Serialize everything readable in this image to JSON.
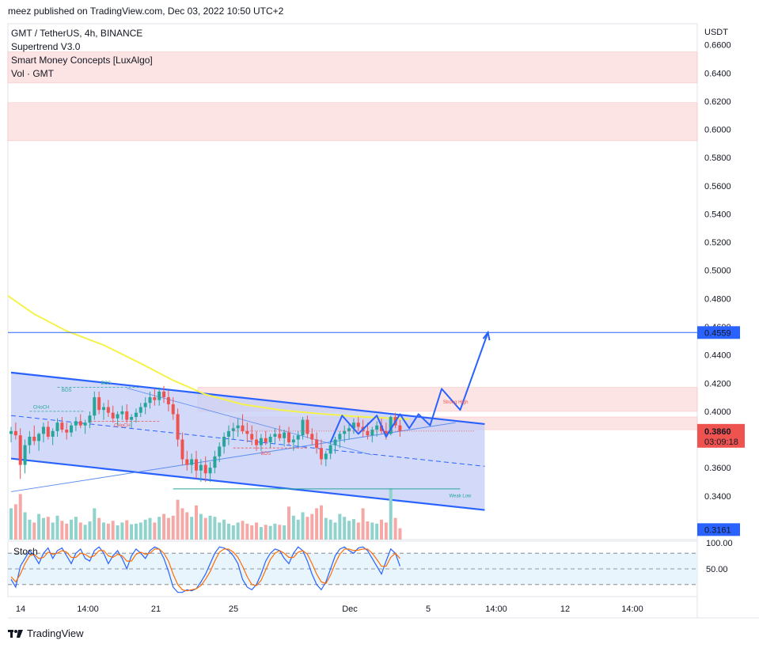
{
  "header": {
    "publish_line": "meez published on TradingView.com, Dec 03, 2022 10:50 UTC+2"
  },
  "legend": {
    "symbol": "GMT / TetherUS, 4h, BINANCE",
    "indicator_1": "Supertrend V3.0",
    "indicator_2": "Smart Money Concepts [LuxAlgo]",
    "indicator_3": "Vol · GMT"
  },
  "footer": {
    "brand": "TradingView"
  },
  "colors": {
    "up": "#26a69a",
    "down": "#ef5350",
    "channel": "#2962ff",
    "channel_fill": "#c3ccf7",
    "supply_zone": "#fde0e0",
    "ema": "#f5f24a",
    "stoch_k": "#2962ff",
    "stoch_d": "#ff6d00",
    "hline": "#2962ff"
  },
  "chart_data": [
    {
      "type": "candlestick",
      "symbol": "GMT / TetherUS",
      "timeframe": "4h",
      "exchange": "BINANCE",
      "y_axis_title": "USDT",
      "ylim": [
        0.309,
        0.675
      ],
      "y_ticks": [
        "0.6600",
        "0.6400",
        "0.6200",
        "0.6000",
        "0.5800",
        "0.5600",
        "0.5400",
        "0.5200",
        "0.5000",
        "0.4800",
        "0.4600",
        "0.4400",
        "0.4200",
        "0.4000",
        "0.3600",
        "0.3400"
      ],
      "x_ticks": [
        "14",
        "14:00",
        "21",
        "25",
        "Dec",
        "5",
        "14:00",
        "12",
        "14:00"
      ],
      "last_price": "0.3860",
      "countdown": "03:09:18",
      "price_labels": [
        "0.4559",
        "0.3161"
      ],
      "horizontal_line": 0.4559,
      "supply_zones": [
        [
          0.633,
          0.655
        ],
        [
          0.592,
          0.619
        ],
        [
          0.4,
          0.417
        ],
        [
          0.387,
          0.396
        ]
      ],
      "annotations": [
        "BOS",
        "BOS",
        "CHoCH",
        "CHoCH",
        "BOS",
        "Strong High",
        "Weak Low"
      ],
      "candles": [
        [
          0.384,
          0.389,
          0.378,
          0.386
        ],
        [
          0.386,
          0.392,
          0.38,
          0.383
        ],
        [
          0.383,
          0.388,
          0.352,
          0.362
        ],
        [
          0.362,
          0.38,
          0.356,
          0.376
        ],
        [
          0.376,
          0.386,
          0.37,
          0.382
        ],
        [
          0.382,
          0.39,
          0.376,
          0.379
        ],
        [
          0.379,
          0.385,
          0.372,
          0.384
        ],
        [
          0.384,
          0.392,
          0.378,
          0.389
        ],
        [
          0.389,
          0.393,
          0.38,
          0.382
        ],
        [
          0.382,
          0.388,
          0.376,
          0.386
        ],
        [
          0.386,
          0.395,
          0.382,
          0.392
        ],
        [
          0.392,
          0.396,
          0.385,
          0.387
        ],
        [
          0.387,
          0.392,
          0.38,
          0.385
        ],
        [
          0.385,
          0.392,
          0.382,
          0.39
        ],
        [
          0.39,
          0.396,
          0.386,
          0.393
        ],
        [
          0.393,
          0.398,
          0.388,
          0.39
        ],
        [
          0.39,
          0.394,
          0.384,
          0.392
        ],
        [
          0.392,
          0.4,
          0.388,
          0.397
        ],
        [
          0.397,
          0.414,
          0.394,
          0.41
        ],
        [
          0.41,
          0.414,
          0.398,
          0.401
        ],
        [
          0.401,
          0.406,
          0.394,
          0.403
        ],
        [
          0.403,
          0.408,
          0.396,
          0.399
        ],
        [
          0.399,
          0.404,
          0.392,
          0.395
        ],
        [
          0.395,
          0.4,
          0.39,
          0.398
        ],
        [
          0.398,
          0.404,
          0.394,
          0.4
        ],
        [
          0.4,
          0.405,
          0.392,
          0.394
        ],
        [
          0.394,
          0.398,
          0.388,
          0.396
        ],
        [
          0.396,
          0.402,
          0.392,
          0.399
        ],
        [
          0.399,
          0.406,
          0.396,
          0.403
        ],
        [
          0.403,
          0.41,
          0.398,
          0.406
        ],
        [
          0.406,
          0.414,
          0.402,
          0.41
        ],
        [
          0.41,
          0.416,
          0.404,
          0.408
        ],
        [
          0.408,
          0.417,
          0.404,
          0.414
        ],
        [
          0.414,
          0.418,
          0.406,
          0.41
        ],
        [
          0.41,
          0.415,
          0.4,
          0.405
        ],
        [
          0.405,
          0.41,
          0.394,
          0.398
        ],
        [
          0.398,
          0.402,
          0.375,
          0.38
        ],
        [
          0.38,
          0.385,
          0.362,
          0.366
        ],
        [
          0.366,
          0.372,
          0.358,
          0.362
        ],
        [
          0.362,
          0.37,
          0.356,
          0.366
        ],
        [
          0.366,
          0.372,
          0.352,
          0.358
        ],
        [
          0.358,
          0.366,
          0.35,
          0.362
        ],
        [
          0.362,
          0.368,
          0.35,
          0.356
        ],
        [
          0.356,
          0.364,
          0.35,
          0.36
        ],
        [
          0.36,
          0.372,
          0.356,
          0.368
        ],
        [
          0.368,
          0.378,
          0.364,
          0.375
        ],
        [
          0.375,
          0.385,
          0.37,
          0.382
        ],
        [
          0.382,
          0.39,
          0.376,
          0.386
        ],
        [
          0.386,
          0.392,
          0.38,
          0.388
        ],
        [
          0.388,
          0.395,
          0.382,
          0.39
        ],
        [
          0.39,
          0.398,
          0.384,
          0.386
        ],
        [
          0.386,
          0.392,
          0.378,
          0.384
        ],
        [
          0.384,
          0.39,
          0.376,
          0.38
        ],
        [
          0.38,
          0.386,
          0.372,
          0.376
        ],
        [
          0.376,
          0.384,
          0.372,
          0.381
        ],
        [
          0.381,
          0.386,
          0.376,
          0.378
        ],
        [
          0.378,
          0.384,
          0.374,
          0.382
        ],
        [
          0.382,
          0.388,
          0.377,
          0.384
        ],
        [
          0.384,
          0.39,
          0.379,
          0.381
        ],
        [
          0.381,
          0.387,
          0.375,
          0.385
        ],
        [
          0.385,
          0.389,
          0.376,
          0.378
        ],
        [
          0.378,
          0.383,
          0.372,
          0.38
        ],
        [
          0.38,
          0.386,
          0.375,
          0.383
        ],
        [
          0.383,
          0.396,
          0.38,
          0.394
        ],
        [
          0.394,
          0.397,
          0.381,
          0.384
        ],
        [
          0.384,
          0.388,
          0.376,
          0.38
        ],
        [
          0.38,
          0.385,
          0.37,
          0.374
        ],
        [
          0.374,
          0.38,
          0.362,
          0.366
        ],
        [
          0.366,
          0.372,
          0.361,
          0.37
        ],
        [
          0.37,
          0.378,
          0.366,
          0.376
        ],
        [
          0.376,
          0.382,
          0.37,
          0.38
        ],
        [
          0.38,
          0.386,
          0.374,
          0.384
        ],
        [
          0.384,
          0.39,
          0.378,
          0.386
        ],
        [
          0.386,
          0.391,
          0.38,
          0.388
        ],
        [
          0.388,
          0.395,
          0.384,
          0.392
        ],
        [
          0.392,
          0.396,
          0.386,
          0.389
        ],
        [
          0.389,
          0.394,
          0.382,
          0.386
        ],
        [
          0.386,
          0.392,
          0.38,
          0.383
        ],
        [
          0.383,
          0.389,
          0.378,
          0.387
        ],
        [
          0.387,
          0.393,
          0.382,
          0.39
        ],
        [
          0.39,
          0.395,
          0.384,
          0.386
        ],
        [
          0.386,
          0.392,
          0.38,
          0.384
        ],
        [
          0.384,
          0.397,
          0.383,
          0.396
        ],
        [
          0.396,
          0.399,
          0.388,
          0.39
        ],
        [
          0.39,
          0.394,
          0.382,
          0.386
        ]
      ],
      "volume": [
        0.55,
        0.62,
        0.8,
        0.48,
        0.35,
        0.3,
        0.45,
        0.38,
        0.4,
        0.3,
        0.42,
        0.33,
        0.28,
        0.35,
        0.4,
        0.3,
        0.26,
        0.32,
        0.55,
        0.38,
        0.3,
        0.28,
        0.33,
        0.25,
        0.3,
        0.34,
        0.27,
        0.28,
        0.3,
        0.35,
        0.38,
        0.3,
        0.4,
        0.45,
        0.38,
        0.42,
        0.7,
        0.55,
        0.48,
        0.4,
        0.6,
        0.45,
        0.38,
        0.42,
        0.4,
        0.3,
        0.35,
        0.28,
        0.25,
        0.3,
        0.33,
        0.28,
        0.25,
        0.3,
        0.22,
        0.26,
        0.24,
        0.28,
        0.26,
        0.25,
        0.58,
        0.42,
        0.35,
        0.48,
        0.4,
        0.45,
        0.55,
        0.6,
        0.38,
        0.35,
        0.3,
        0.45,
        0.4,
        0.33,
        0.36,
        0.3,
        0.55,
        0.32,
        0.3,
        0.28,
        0.35,
        0.3,
        0.9,
        0.38,
        0.2
      ]
    },
    {
      "type": "line",
      "name": "Stoch",
      "y_ticks": [
        "100.00",
        "50.00"
      ],
      "ylim": [
        0,
        100
      ],
      "bands": [
        80,
        50,
        20
      ],
      "series": [
        {
          "name": "%K",
          "values": [
            30,
            15,
            55,
            70,
            85,
            75,
            60,
            80,
            90,
            70,
            85,
            90,
            75,
            60,
            80,
            88,
            70,
            65,
            85,
            92,
            80,
            60,
            75,
            85,
            70,
            50,
            75,
            88,
            80,
            70,
            85,
            92,
            88,
            70,
            45,
            15,
            5,
            5,
            10,
            8,
            12,
            25,
            40,
            60,
            80,
            92,
            90,
            85,
            75,
            60,
            30,
            15,
            10,
            20,
            40,
            65,
            80,
            88,
            85,
            70,
            60,
            80,
            92,
            85,
            65,
            40,
            20,
            10,
            25,
            50,
            75,
            88,
            92,
            85,
            80,
            90,
            92,
            85,
            70,
            55,
            40,
            65,
            88,
            80,
            55
          ]
        },
        {
          "name": "%D",
          "values": [
            35,
            25,
            40,
            60,
            75,
            78,
            70,
            72,
            82,
            78,
            80,
            85,
            82,
            72,
            72,
            80,
            78,
            72,
            75,
            85,
            85,
            75,
            72,
            78,
            75,
            65,
            65,
            78,
            82,
            78,
            80,
            88,
            88,
            80,
            65,
            40,
            20,
            10,
            8,
            10,
            12,
            18,
            30,
            45,
            65,
            82,
            88,
            88,
            82,
            72,
            55,
            35,
            20,
            18,
            28,
            48,
            68,
            80,
            85,
            80,
            72,
            72,
            82,
            85,
            78,
            60,
            40,
            25,
            22,
            38,
            60,
            78,
            88,
            88,
            85,
            86,
            88,
            88,
            80,
            68,
            55,
            55,
            72,
            80,
            70
          ]
        }
      ]
    }
  ]
}
